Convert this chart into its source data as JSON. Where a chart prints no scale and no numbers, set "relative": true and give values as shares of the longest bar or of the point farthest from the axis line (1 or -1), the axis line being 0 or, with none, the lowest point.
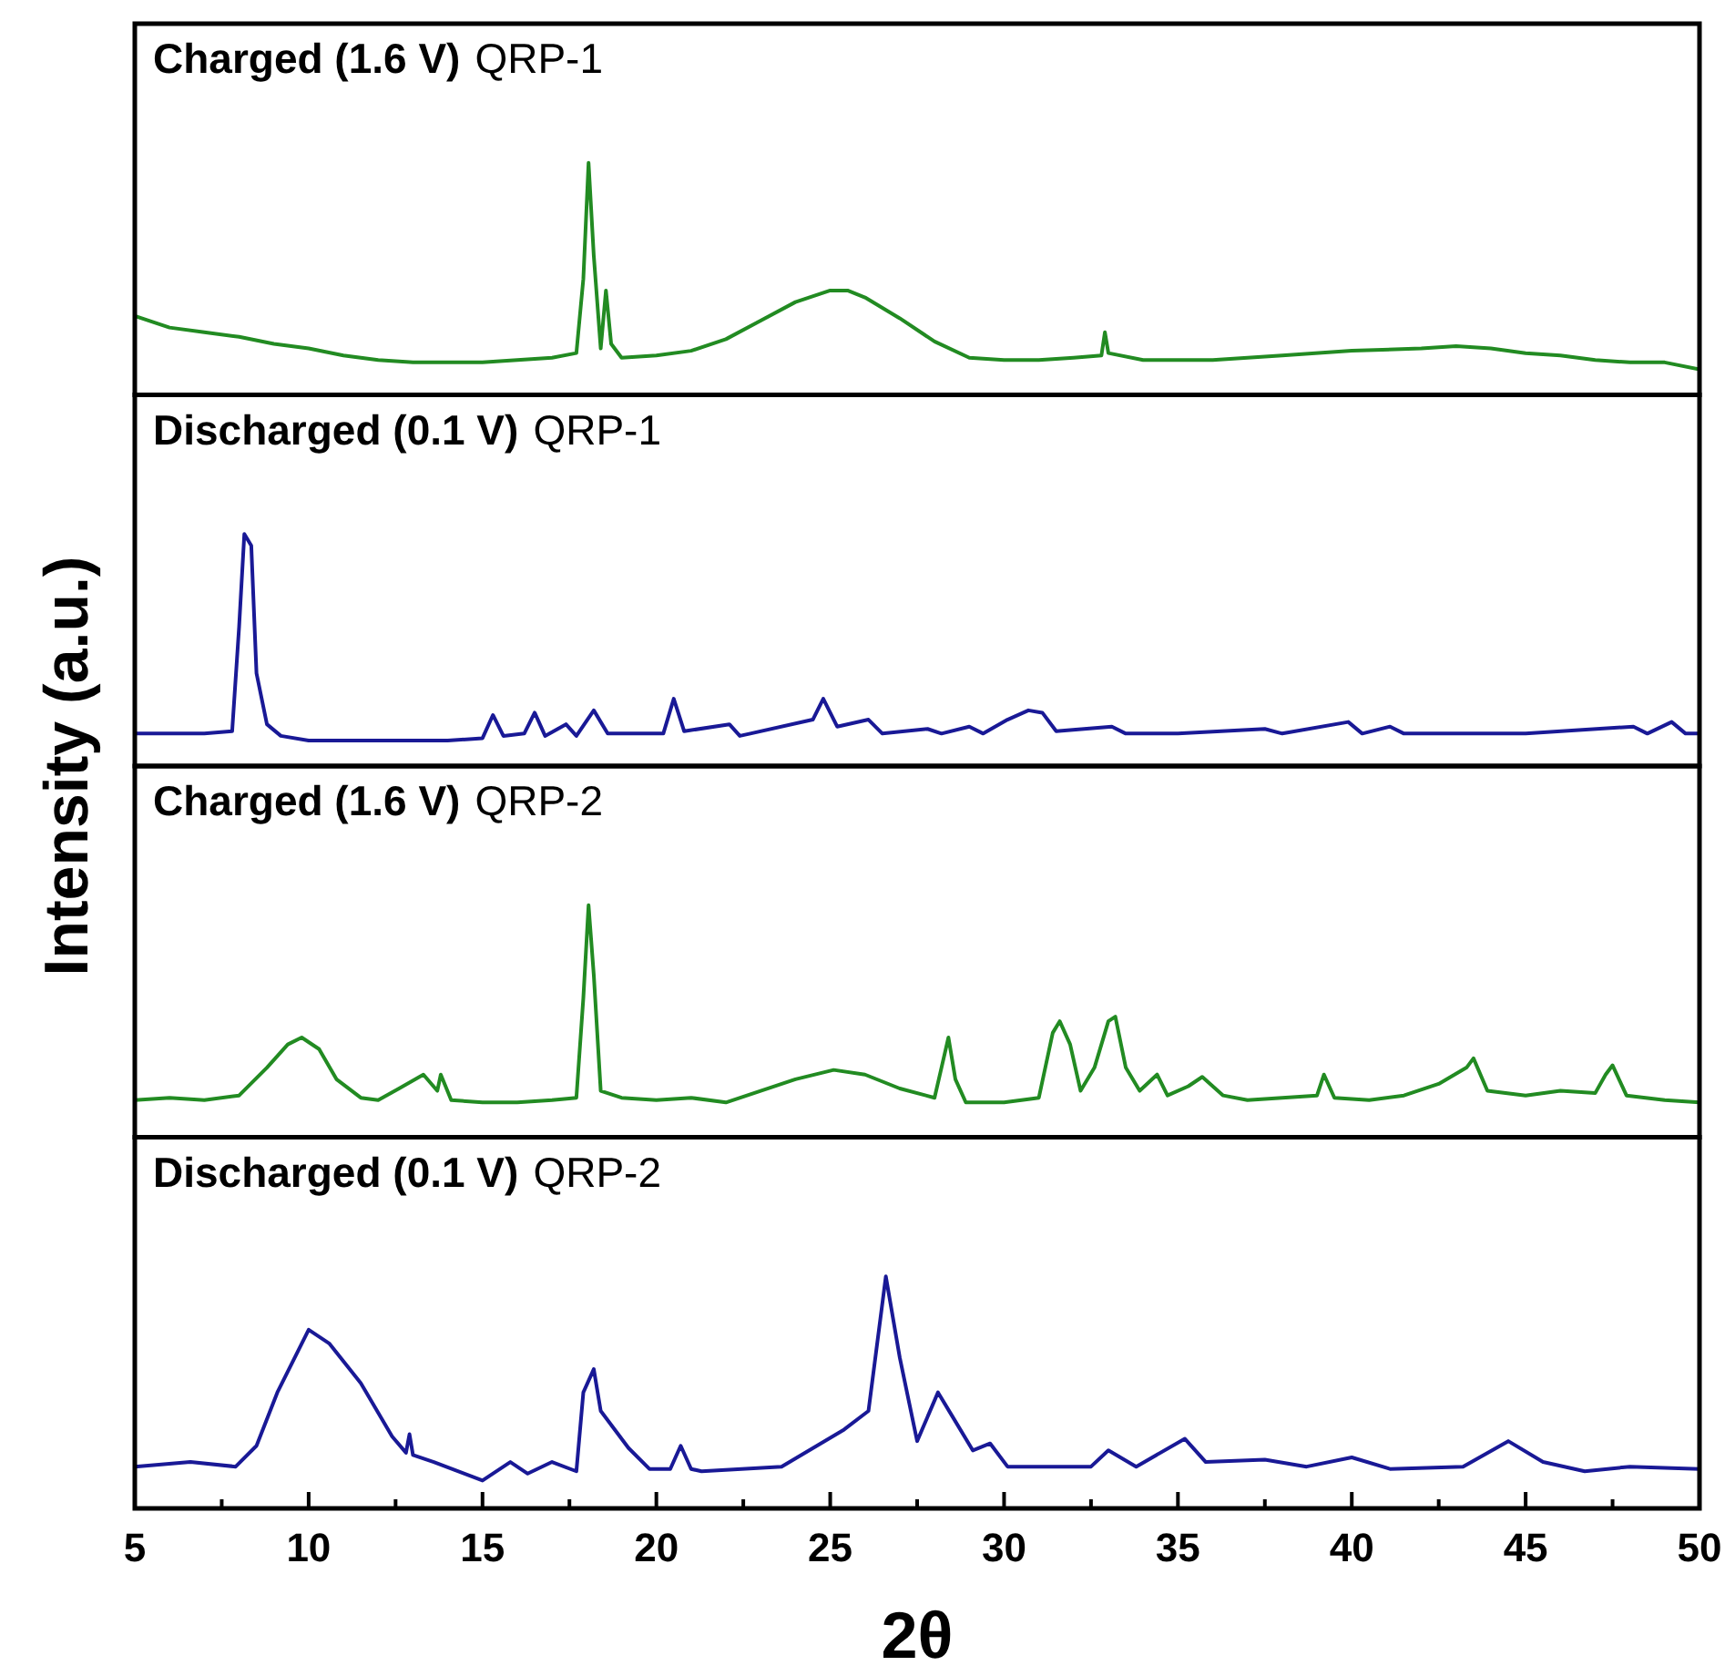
{
  "chart_data": [
    {
      "type": "line",
      "title": "Charged (1.6 V)",
      "subtitle": "QRP-1",
      "relative": true,
      "xlim": [
        5,
        50
      ],
      "tick_labels": false,
      "x": [
        5,
        6,
        7,
        8,
        9,
        10,
        11,
        12,
        13,
        14,
        15,
        16,
        17,
        17.7,
        17.9,
        18.05,
        18.2,
        18.4,
        18.55,
        18.7,
        19,
        20,
        21,
        22,
        23,
        24,
        25,
        25.5,
        26,
        27,
        28,
        29,
        30,
        31,
        32,
        32.8,
        32.9,
        33,
        34,
        36,
        38,
        40,
        42,
        43,
        44,
        45,
        46,
        47,
        48,
        49,
        50
      ],
      "series": [
        {
          "color": "#228b22",
          "values": [
            0.34,
            0.29,
            0.27,
            0.25,
            0.22,
            0.2,
            0.17,
            0.15,
            0.14,
            0.14,
            0.14,
            0.15,
            0.16,
            0.18,
            0.5,
            1.0,
            0.6,
            0.2,
            0.45,
            0.22,
            0.16,
            0.17,
            0.19,
            0.24,
            0.32,
            0.4,
            0.45,
            0.45,
            0.42,
            0.33,
            0.23,
            0.16,
            0.15,
            0.15,
            0.16,
            0.17,
            0.27,
            0.18,
            0.15,
            0.15,
            0.17,
            0.19,
            0.2,
            0.21,
            0.2,
            0.18,
            0.17,
            0.15,
            0.14,
            0.14,
            0.11
          ]
        }
      ]
    },
    {
      "type": "line",
      "title": "Discharged (0.1 V)",
      "subtitle": "QRP-1",
      "ylabel": "Intensity (a.u.)",
      "relative": true,
      "xlim": [
        5,
        50
      ],
      "tick_labels": false,
      "x": [
        5,
        6,
        7,
        7.8,
        8.0,
        8.15,
        8.35,
        8.5,
        8.8,
        9.2,
        10,
        12,
        14,
        15.0,
        15.3,
        15.6,
        16.2,
        16.5,
        16.8,
        17.4,
        17.7,
        18.2,
        18.6,
        20.2,
        20.5,
        20.8,
        22.1,
        22.4,
        22.7,
        24.5,
        24.8,
        25.2,
        26.1,
        26.5,
        27.8,
        28.2,
        29.0,
        29.4,
        30.1,
        30.7,
        31.1,
        31.5,
        33.1,
        33.5,
        35,
        37.5,
        38,
        39.9,
        40.3,
        41.1,
        41.5,
        43,
        45,
        48.1,
        48.5,
        49.2,
        49.6,
        50
      ],
      "series": [
        {
          "color": "#191996",
          "values": [
            0.14,
            0.14,
            0.14,
            0.15,
            0.6,
            1.0,
            0.95,
            0.4,
            0.18,
            0.13,
            0.11,
            0.11,
            0.11,
            0.12,
            0.22,
            0.13,
            0.14,
            0.23,
            0.13,
            0.18,
            0.13,
            0.24,
            0.14,
            0.14,
            0.29,
            0.15,
            0.18,
            0.13,
            0.14,
            0.2,
            0.29,
            0.17,
            0.2,
            0.14,
            0.16,
            0.14,
            0.17,
            0.14,
            0.2,
            0.24,
            0.23,
            0.15,
            0.17,
            0.14,
            0.14,
            0.16,
            0.14,
            0.19,
            0.14,
            0.17,
            0.14,
            0.14,
            0.14,
            0.17,
            0.14,
            0.19,
            0.14,
            0.14
          ]
        }
      ]
    },
    {
      "type": "line",
      "title": "Charged (1.6 V)",
      "subtitle": "QRP-2",
      "relative": true,
      "xlim": [
        5,
        50
      ],
      "tick_labels": false,
      "x": [
        5,
        6,
        7,
        8,
        8.8,
        9.4,
        9.8,
        10.3,
        10.8,
        11.5,
        12,
        12.6,
        13.3,
        13.7,
        13.8,
        14.1,
        15,
        16,
        17,
        17.7,
        17.9,
        18.05,
        18.2,
        18.4,
        19,
        20,
        21,
        22,
        23,
        24,
        25.1,
        26,
        27,
        28,
        28.2,
        28.4,
        28.6,
        28.9,
        30,
        31,
        31.4,
        31.6,
        31.9,
        32.2,
        32.6,
        33.0,
        33.2,
        33.5,
        33.9,
        34.4,
        34.7,
        35.3,
        35.7,
        36.3,
        37,
        38,
        39,
        39.2,
        39.5,
        40.5,
        41.5,
        42.5,
        43.3,
        43.5,
        43.9,
        45,
        46,
        47,
        47.3,
        47.5,
        47.9,
        49,
        50
      ],
      "series": [
        {
          "color": "#228b22",
          "values": [
            0.16,
            0.17,
            0.16,
            0.18,
            0.3,
            0.4,
            0.43,
            0.38,
            0.25,
            0.17,
            0.16,
            0.21,
            0.27,
            0.2,
            0.27,
            0.16,
            0.15,
            0.15,
            0.16,
            0.17,
            0.6,
            1.0,
            0.7,
            0.2,
            0.17,
            0.16,
            0.17,
            0.15,
            0.2,
            0.25,
            0.29,
            0.27,
            0.21,
            0.17,
            0.3,
            0.43,
            0.25,
            0.15,
            0.15,
            0.17,
            0.45,
            0.5,
            0.4,
            0.2,
            0.3,
            0.5,
            0.52,
            0.3,
            0.2,
            0.27,
            0.18,
            0.22,
            0.26,
            0.18,
            0.16,
            0.17,
            0.18,
            0.27,
            0.17,
            0.16,
            0.18,
            0.23,
            0.3,
            0.34,
            0.2,
            0.18,
            0.2,
            0.19,
            0.27,
            0.31,
            0.18,
            0.16,
            0.15
          ]
        }
      ]
    },
    {
      "type": "line",
      "title": "Discharged (0.1 V)",
      "subtitle": "QRP-2",
      "xlabel": "2θ",
      "relative": true,
      "xlim": [
        5,
        50
      ],
      "tick_labels": "x",
      "xticks": [
        5,
        {
          "value": 7.5,
          "label": null
        },
        10,
        {
          "value": 12.5,
          "label": null
        },
        15,
        {
          "value": 17.5,
          "label": null
        },
        20,
        {
          "value": 22.5,
          "label": null
        },
        25,
        {
          "value": 27.5,
          "label": null
        },
        30,
        {
          "value": 32.5,
          "label": null
        },
        35,
        {
          "value": 37.5,
          "label": null
        },
        40,
        {
          "value": 42.5,
          "label": null
        },
        45,
        {
          "value": 47.5,
          "label": null
        },
        50
      ],
      "x": [
        5,
        6.6,
        7.9,
        8.5,
        9.1,
        10.0,
        10.6,
        11.5,
        12.4,
        12.8,
        12.9,
        13.0,
        13.6,
        15.0,
        15.8,
        16.3,
        17.0,
        17.7,
        17.9,
        18.2,
        18.4,
        19.2,
        19.8,
        20.4,
        20.7,
        21.0,
        21.3,
        23.6,
        25.4,
        26.1,
        26.6,
        27.0,
        27.5,
        28.1,
        28.5,
        29.1,
        29.6,
        30.1,
        32.5,
        33.0,
        33.8,
        35.2,
        35.8,
        37.5,
        38.7,
        40.0,
        41.1,
        43.2,
        44.5,
        45.5,
        46.7,
        48.0,
        50
      ],
      "series": [
        {
          "color": "#191996",
          "values": [
            0.18,
            0.2,
            0.18,
            0.27,
            0.5,
            0.77,
            0.71,
            0.54,
            0.31,
            0.24,
            0.32,
            0.23,
            0.2,
            0.12,
            0.2,
            0.15,
            0.2,
            0.16,
            0.5,
            0.6,
            0.42,
            0.26,
            0.17,
            0.17,
            0.27,
            0.17,
            0.16,
            0.18,
            0.34,
            0.42,
            1.0,
            0.65,
            0.29,
            0.5,
            0.4,
            0.25,
            0.28,
            0.18,
            0.18,
            0.25,
            0.18,
            0.3,
            0.2,
            0.21,
            0.18,
            0.22,
            0.17,
            0.18,
            0.29,
            0.2,
            0.16,
            0.18,
            0.17
          ]
        }
      ]
    }
  ]
}
